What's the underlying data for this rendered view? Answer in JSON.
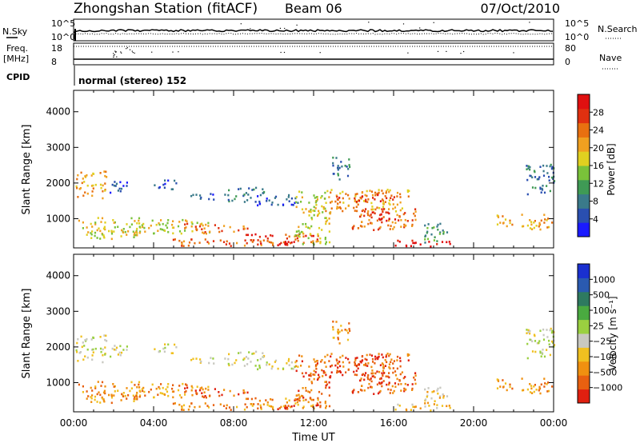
{
  "header": {
    "title": "Zhongshan Station (fitACF)",
    "beam": "Beam 06",
    "date": "07/Oct/2010"
  },
  "params": {
    "nsky_label": "N.Sky",
    "nsearch_label": "N.Search",
    "freq_label": "Freq.",
    "freq_unit": "[MHz]",
    "nave_label": "Nave",
    "cpid_label": "CPID",
    "cpid_text": "normal (stereo) 152",
    "noise_ticks": [
      "10^5",
      "10^0"
    ],
    "noise_right_ticks": [
      "10^5",
      "10^0"
    ],
    "freq_ticks": [
      "18",
      "8"
    ],
    "nave_ticks": [
      "80",
      "0"
    ]
  },
  "chart_data": [
    {
      "type": "heatmap",
      "name": "power",
      "ylabel": "Slant Range [km]",
      "xlabel": "",
      "xlim": [
        0,
        24
      ],
      "ylim": [
        180,
        4600
      ],
      "yticks": [
        "1000",
        "2000",
        "3000",
        "4000"
      ],
      "colorbar": {
        "label": "Power [dB]",
        "ticks": [
          "4",
          "8",
          "12",
          "16",
          "20",
          "24",
          "28"
        ],
        "colors": [
          "#1a1aff",
          "#2a4fb0",
          "#3a7a8a",
          "#3f9a55",
          "#7ac23a",
          "#e0d020",
          "#f0a020",
          "#e87010",
          "#e03010",
          "#e01010"
        ]
      }
    },
    {
      "type": "heatmap",
      "name": "velocity",
      "ylabel": "Slant Range [km]",
      "xlabel": "Time UT",
      "xlim": [
        0,
        24
      ],
      "ylim": [
        180,
        4600
      ],
      "yticks": [
        "1000",
        "2000",
        "3000",
        "4000"
      ],
      "xticks": [
        "00:00",
        "04:00",
        "08:00",
        "12:00",
        "16:00",
        "20:00",
        "00:00"
      ],
      "colorbar": {
        "label": "Velocity [m s⁻¹]",
        "ticks": [
          "1000",
          "500",
          "100",
          "25",
          "−25",
          "−100",
          "−500",
          "−1000"
        ],
        "colors": [
          "#1a30d0",
          "#2a5ab0",
          "#2e7a60",
          "#4aaa40",
          "#9ad040",
          "#c8c8c0",
          "#f0c020",
          "#f09010",
          "#e86010",
          "#e02010"
        ]
      }
    }
  ],
  "scatter_bands": [
    {
      "t0": 0.1,
      "t1": 1.6,
      "r0": 1600,
      "r1": 2350,
      "pc": 6,
      "vc": 5
    },
    {
      "t0": 1.8,
      "t1": 2.8,
      "r0": 1750,
      "r1": 2150,
      "pc": 1,
      "vc": 5
    },
    {
      "t0": 3.9,
      "t1": 5.2,
      "r0": 1850,
      "r1": 2100,
      "pc": 1,
      "vc": 5
    },
    {
      "t0": 5.8,
      "t1": 7.2,
      "r0": 1550,
      "r1": 1750,
      "pc": 1,
      "vc": 5
    },
    {
      "t0": 7.5,
      "t1": 9.5,
      "r0": 1500,
      "r1": 1900,
      "pc": 2,
      "vc": 5
    },
    {
      "t0": 9.0,
      "t1": 11.2,
      "r0": 1400,
      "r1": 1700,
      "pc": 1,
      "vc": 5
    },
    {
      "t0": 12.5,
      "t1": 16.8,
      "r0": 1200,
      "r1": 1850,
      "pc": 6,
      "vc": 8
    },
    {
      "t0": 13.0,
      "t1": 16.5,
      "r0": 1500,
      "r1": 1700,
      "pc": 8,
      "vc": 8
    },
    {
      "t0": 13.8,
      "t1": 17.2,
      "r0": 700,
      "r1": 1300,
      "pc": 7,
      "vc": 8
    },
    {
      "t0": 14.8,
      "t1": 16.2,
      "r0": 900,
      "r1": 1250,
      "pc": 9,
      "vc": 9
    },
    {
      "t0": 0.2,
      "t1": 3.5,
      "r0": 450,
      "r1": 1050,
      "pc": 5,
      "vc": 7
    },
    {
      "t0": 3.0,
      "t1": 6.8,
      "r0": 600,
      "r1": 1000,
      "pc": 5,
      "vc": 7
    },
    {
      "t0": 5.5,
      "t1": 8.8,
      "r0": 650,
      "r1": 900,
      "pc": 7,
      "vc": 8
    },
    {
      "t0": 4.8,
      "t1": 10.0,
      "r0": 260,
      "r1": 460,
      "pc": 7,
      "vc": 7
    },
    {
      "t0": 8.5,
      "t1": 12.2,
      "r0": 300,
      "r1": 600,
      "pc": 8,
      "vc": 7
    },
    {
      "t0": 10.0,
      "t1": 11.3,
      "r0": 250,
      "r1": 400,
      "pc": 9,
      "vc": 9
    },
    {
      "t0": 11.0,
      "t1": 12.8,
      "r0": 300,
      "r1": 1800,
      "pc": 5,
      "vc": 8
    },
    {
      "t0": 16.0,
      "t1": 18.8,
      "r0": 240,
      "r1": 420,
      "pc": 9,
      "vc": 6
    },
    {
      "t0": 17.5,
      "t1": 18.7,
      "r0": 300,
      "r1": 900,
      "pc": 3,
      "vc": 6
    },
    {
      "t0": 21.0,
      "t1": 21.9,
      "r0": 800,
      "r1": 1200,
      "pc": 6,
      "vc": 7
    },
    {
      "t0": 22.5,
      "t1": 24.0,
      "r0": 1700,
      "r1": 2600,
      "pc": 2,
      "vc": 5
    },
    {
      "t0": 22.3,
      "t1": 24.0,
      "r0": 700,
      "r1": 1150,
      "pc": 6,
      "vc": 7
    },
    {
      "t0": 12.9,
      "t1": 13.8,
      "r0": 2100,
      "r1": 2800,
      "pc": 2,
      "vc": 7
    }
  ]
}
